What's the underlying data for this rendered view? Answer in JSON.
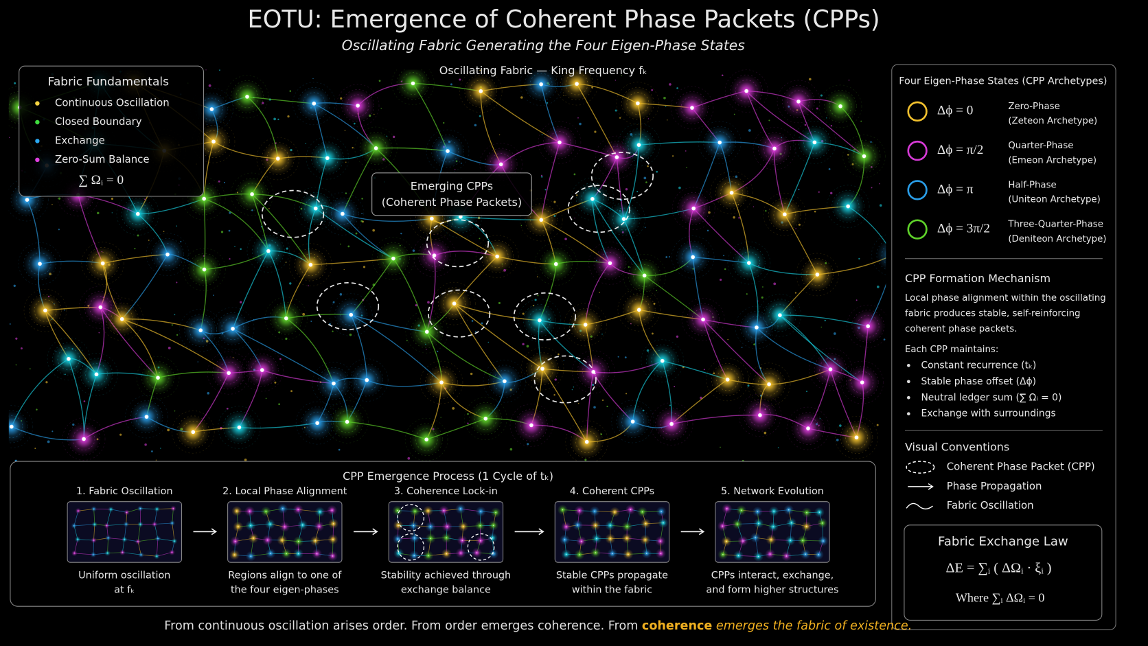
{
  "header": {
    "title": "EOTU: Emergence of Coherent Phase Packets (CPPs)",
    "subtitle": "Oscillating Fabric Generating the Four Eigen-Phase States"
  },
  "fabric": {
    "label": "Oscillating Fabric — King Frequency fₖ",
    "callout": [
      "Emerging CPPs",
      "(Coherent Phase Packets)"
    ]
  },
  "fundamentals": {
    "title": "Fabric Fundamentals",
    "items": [
      {
        "text": "Continuous Oscillation",
        "color": "#f5d442"
      },
      {
        "text": "Closed Boundary",
        "color": "#3fdc3f"
      },
      {
        "text": "Exchange",
        "color": "#2aa8f0"
      },
      {
        "text": "Zero-Sum Balance",
        "color": "#e040e0"
      }
    ],
    "equation": "∑ Ωᵢ = 0"
  },
  "eigen_states": {
    "title": "Four Eigen-Phase States (CPP Archetypes)",
    "states": [
      {
        "equation": "Δϕ = 0",
        "name": "Zero-Phase",
        "archetype": "(Zeteon Archetype)",
        "color": "#f2c12e"
      },
      {
        "equation": "Δϕ = π/2",
        "name": "Quarter-Phase",
        "archetype": "(Emeon Archetype)",
        "color": "#d63ad6"
      },
      {
        "equation": "Δϕ = π",
        "name": "Half-Phase",
        "archetype": "(Uniteon Archetype)",
        "color": "#2a9ee8"
      },
      {
        "equation": "Δϕ = 3π/2",
        "name": "Three-Quarter-Phase",
        "archetype": "(Deniteon Archetype)",
        "color": "#5fd22a"
      }
    ]
  },
  "mechanism": {
    "title": "CPP Formation Mechanism",
    "description": [
      "Local phase alignment within the oscillating",
      "fabric produces stable, self-reinforcing",
      "coherent phase packets."
    ],
    "list_intro": "Each CPP maintains:",
    "bullets": [
      "Constant recurrence (tₖ)",
      "Stable phase offset (Δϕ)",
      "Neutral ledger sum (∑ Ωᵢ = 0)",
      "Exchange with surroundings"
    ]
  },
  "conventions": {
    "title": "Visual Conventions",
    "items": [
      "Coherent Phase Packet (CPP)",
      "Phase Propagation",
      "Fabric Oscillation"
    ]
  },
  "law": {
    "title": "Fabric Exchange Law",
    "equation": "ΔE = ∑ᵢ ( ΔΩᵢ · ξᵢ )",
    "condition": "Where ∑ᵢ ΔΩᵢ = 0"
  },
  "process": {
    "title": "CPP Emergence Process (1 Cycle of tₖ)",
    "steps": [
      {
        "label": "1. Fabric Oscillation",
        "caption": [
          "Uniform oscillation",
          "at fₖ"
        ]
      },
      {
        "label": "2. Local Phase Alignment",
        "caption": [
          "Regions align to one of",
          "the four eigen-phases"
        ]
      },
      {
        "label": "3. Coherence Lock-in",
        "caption": [
          "Stability achieved through",
          "exchange balance"
        ]
      },
      {
        "label": "4. Coherent CPPs",
        "caption": [
          "Stable CPPs propagate",
          "within the fabric"
        ]
      },
      {
        "label": "5. Network Evolution",
        "caption": [
          "CPPs interact, exchange,",
          "and form higher structures"
        ]
      }
    ]
  },
  "footer": {
    "plain": "From continuous oscillation arises order. From order emerges coherence. From ",
    "highlight": "coherence",
    "tail": " emerges the fabric of existence."
  }
}
